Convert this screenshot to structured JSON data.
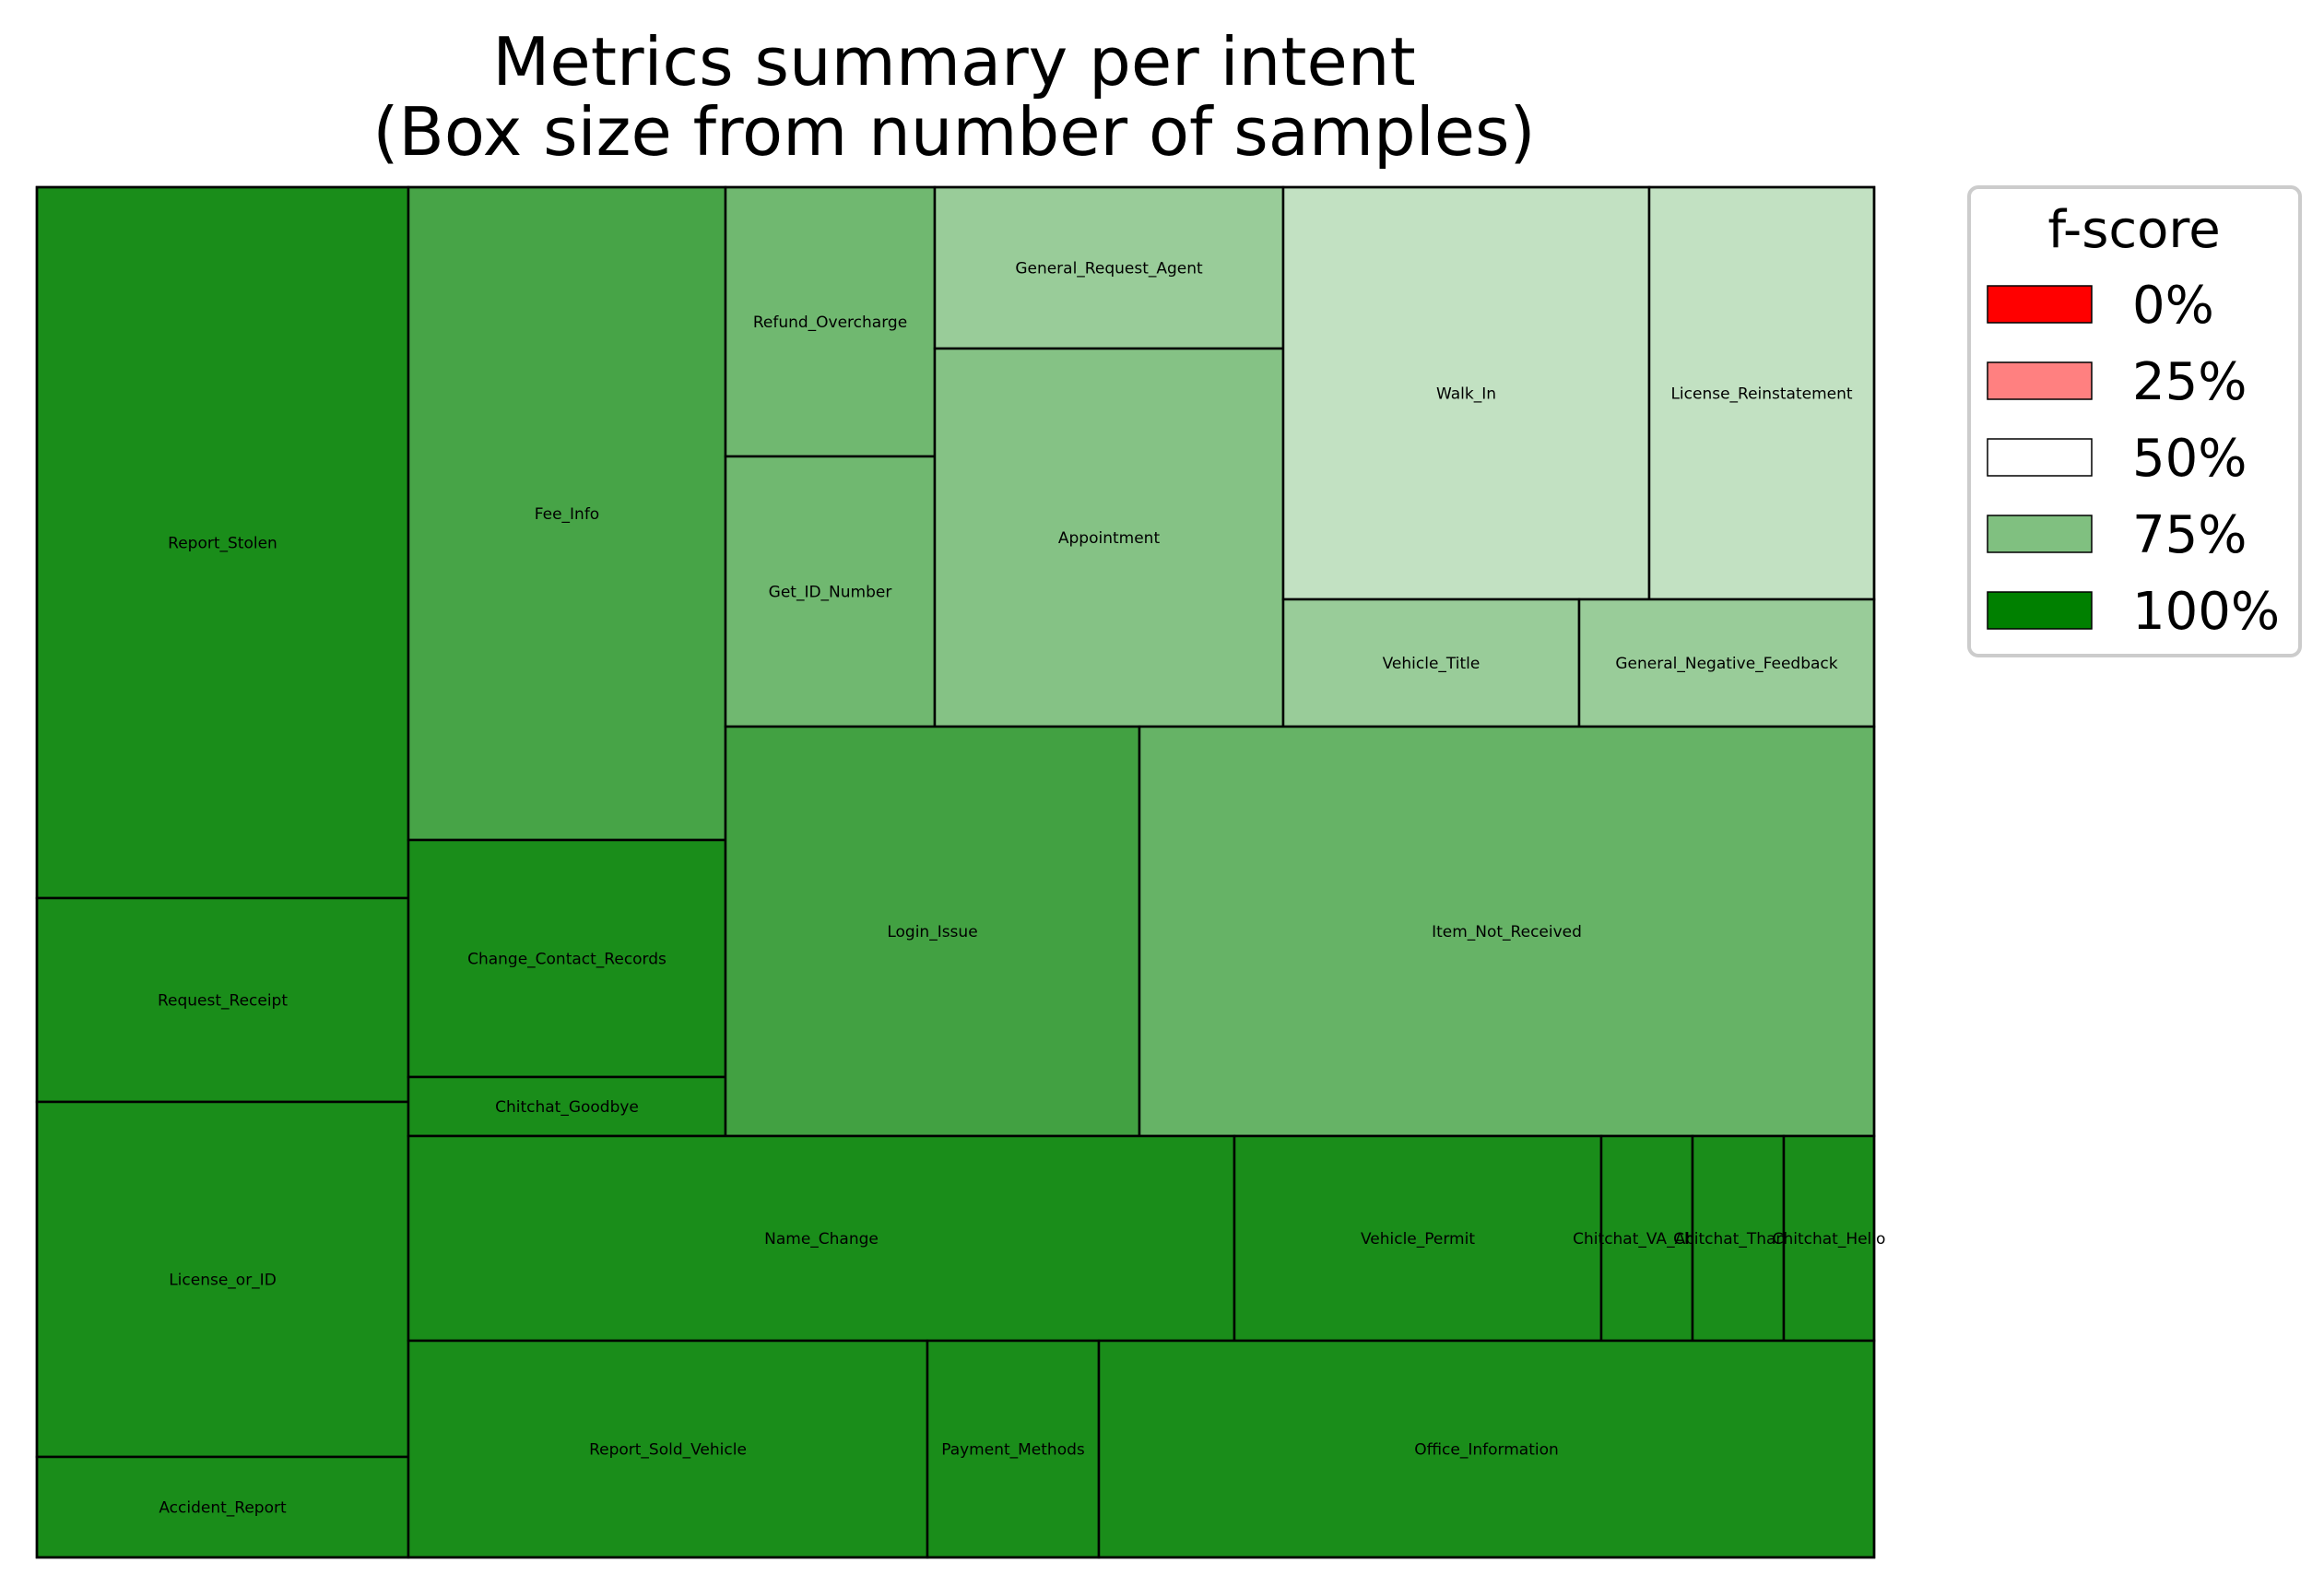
{
  "chart_data": {
    "type": "treemap",
    "title": [
      "Metrics summary per intent",
      "(Box size from number of samples)"
    ],
    "size_metric": "number of samples",
    "color_metric": "f-score",
    "legend": {
      "title": "f-score",
      "placement": "right",
      "items": [
        {
          "label": "0%",
          "color": "#ff0000"
        },
        {
          "label": "25%",
          "color": "#ff8080"
        },
        {
          "label": "50%",
          "color": "#ffffff"
        },
        {
          "label": "75%",
          "color": "#80c080"
        },
        {
          "label": "100%",
          "color": "#008000"
        }
      ]
    },
    "intents": [
      {
        "name": "Report_Stolen",
        "samples": 47.8,
        "fscore": 0.95
      },
      {
        "name": "Request_Receipt",
        "samples": 13.7,
        "fscore": 0.95
      },
      {
        "name": "License_or_ID",
        "samples": 23.9,
        "fscore": 0.95
      },
      {
        "name": "Accident_Report",
        "samples": 6.8,
        "fscore": 0.95
      },
      {
        "name": "Fee_Info",
        "samples": 31.9,
        "fscore": 0.86
      },
      {
        "name": "Change_Contact_Records",
        "samples": 11.6,
        "fscore": 0.95
      },
      {
        "name": "Chitchat_Goodbye",
        "samples": 2.9,
        "fscore": 0.95
      },
      {
        "name": "Refund_Overcharge",
        "samples": 8.6,
        "fscore": 0.78
      },
      {
        "name": "Get_ID_Number",
        "samples": 8.6,
        "fscore": 0.78
      },
      {
        "name": "General_Request_Agent",
        "samples": 8.6,
        "fscore": 0.7
      },
      {
        "name": "Appointment",
        "samples": 20.2,
        "fscore": 0.74
      },
      {
        "name": "Walk_In",
        "samples": 22.9,
        "fscore": 0.62
      },
      {
        "name": "License_Reinstatement",
        "samples": 14.3,
        "fscore": 0.62
      },
      {
        "name": "Vehicle_Title",
        "samples": 5.8,
        "fscore": 0.7
      },
      {
        "name": "General_Negative_Feedback",
        "samples": 5.8,
        "fscore": 0.7
      },
      {
        "name": "Login_Issue",
        "samples": 26.0,
        "fscore": 0.87
      },
      {
        "name": "Item_Not_Received",
        "samples": 46.1,
        "fscore": 0.8
      },
      {
        "name": "Name_Change",
        "samples": 26.1,
        "fscore": 0.95
      },
      {
        "name": "Vehicle_Permit",
        "samples": 11.6,
        "fscore": 0.95
      },
      {
        "name": "Chitchat_VA_About",
        "samples": 2.9,
        "fscore": 0.95
      },
      {
        "name": "Chitchat_Thanks",
        "samples": 2.9,
        "fscore": 0.95
      },
      {
        "name": "Chitchat_Hello",
        "samples": 2.9,
        "fscore": 0.95
      },
      {
        "name": "Report_Sold_Vehicle",
        "samples": 17.3,
        "fscore": 0.95
      },
      {
        "name": "Payment_Methods",
        "samples": 5.8,
        "fscore": 0.95
      },
      {
        "name": "Office_Information",
        "samples": 26.0,
        "fscore": 0.95
      }
    ]
  }
}
